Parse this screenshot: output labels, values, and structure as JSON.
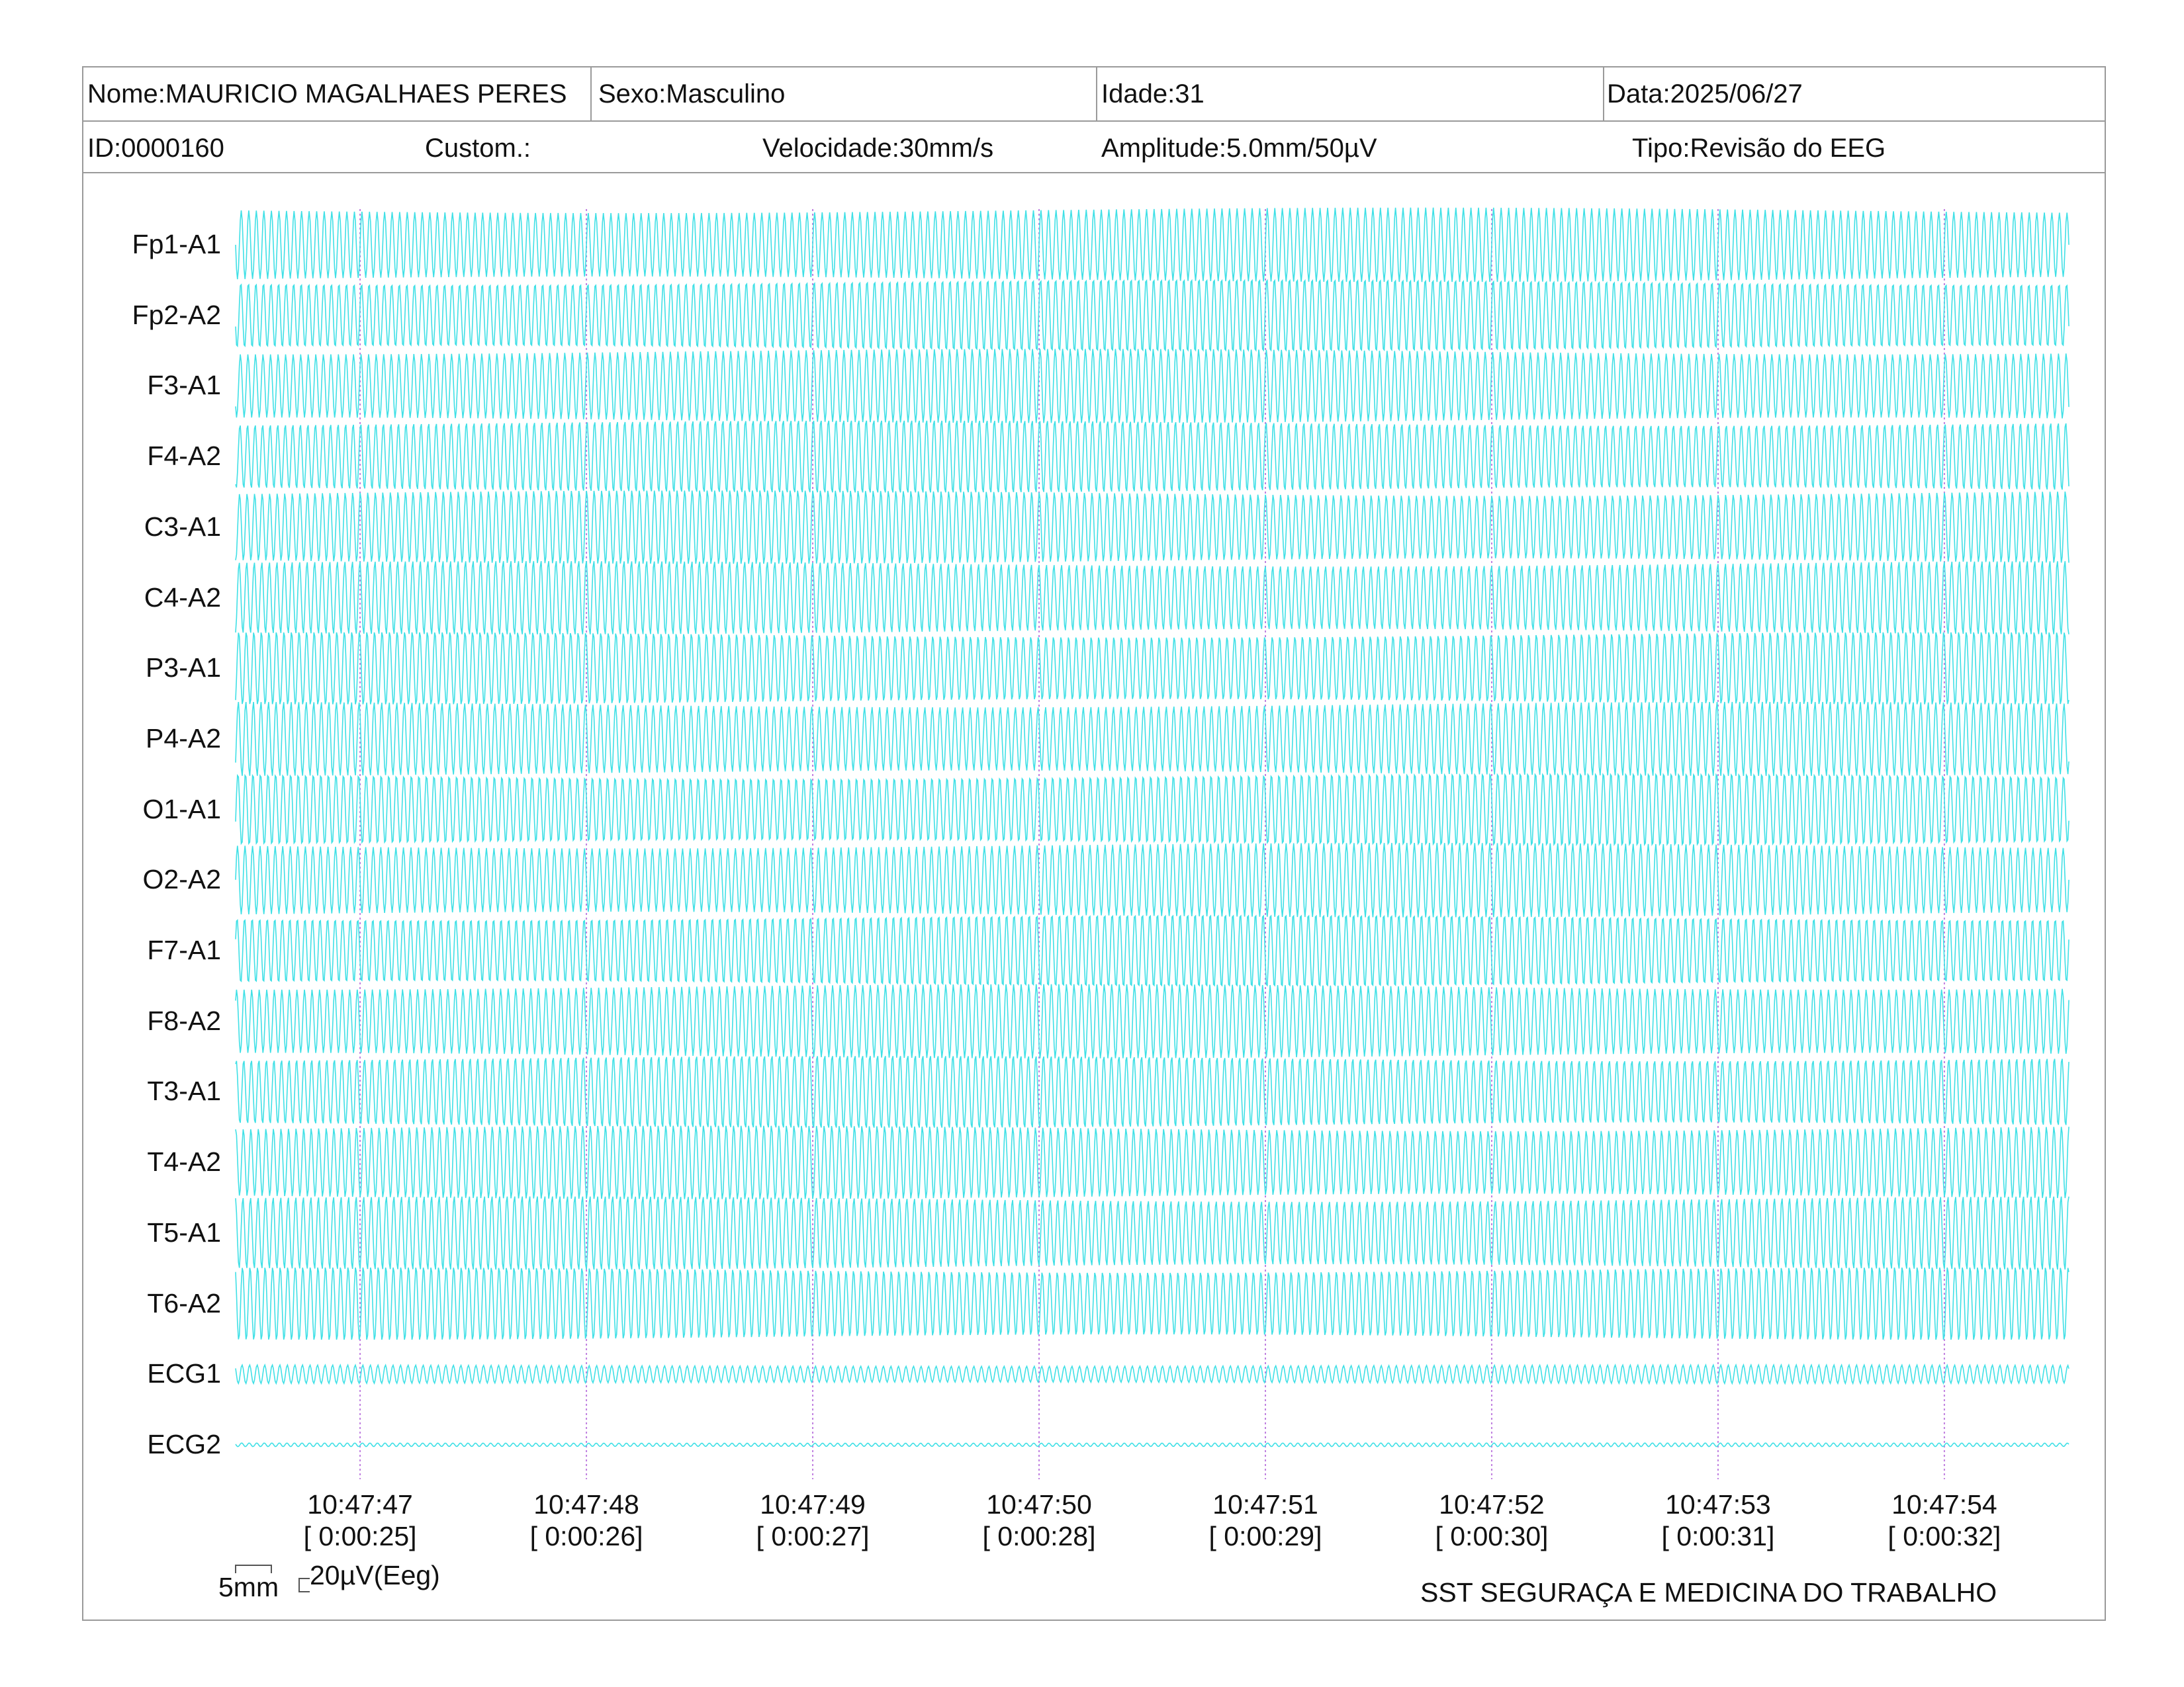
{
  "header": {
    "nome": "Nome:MAURICIO MAGALHAES PERES",
    "sexo": "Sexo:Masculino",
    "idade": "Idade:31",
    "data": "Data:2025/06/27",
    "id": "ID:0000160",
    "custom": "Custom.:",
    "velocidade": "Velocidade:30mm/s",
    "amplitude": "Amplitude:5.0mm/50µV",
    "tipo": "Tipo:Revisão do EEG"
  },
  "scale": {
    "mm": "5mm",
    "uv": "20µV(Eeg)"
  },
  "footer": {
    "company": "SST SEGURAÇA E MEDICINA DO TRABALHO"
  },
  "colors": {
    "trace": "#40e0e6",
    "time_marker": "#c080e0",
    "border": "#9a9a9a"
  },
  "chart_data": {
    "type": "line",
    "title": "",
    "channels": [
      "Fp1-A1",
      "Fp2-A2",
      "F3-A1",
      "F4-A2",
      "C3-A1",
      "C4-A2",
      "P3-A1",
      "P4-A2",
      "O1-A1",
      "O2-A2",
      "F7-A1",
      "F8-A2",
      "T3-A1",
      "T4-A2",
      "T5-A1",
      "T6-A2",
      "ECG1",
      "ECG2"
    ],
    "time_markers": [
      {
        "clock": "10:47:47",
        "elapsed": "[ 0:00:25]"
      },
      {
        "clock": "10:47:48",
        "elapsed": "[ 0:00:26]"
      },
      {
        "clock": "10:47:49",
        "elapsed": "[ 0:00:27]"
      },
      {
        "clock": "10:47:50",
        "elapsed": "[ 0:00:28]"
      },
      {
        "clock": "10:47:51",
        "elapsed": "[ 0:00:29]"
      },
      {
        "clock": "10:47:52",
        "elapsed": "[ 0:00:30]"
      },
      {
        "clock": "10:47:53",
        "elapsed": "[ 0:00:31]"
      },
      {
        "clock": "10:47:54",
        "elapsed": "[ 0:00:32]"
      }
    ],
    "signal": {
      "eeg_cycles_per_second": 30,
      "ecg1_cycles_per_second": 30,
      "ecg2_cycles_per_second": 30,
      "eeg_amplitude_relative": 1.0,
      "ecg1_amplitude_relative": 0.25,
      "ecg2_amplitude_relative": 0.05
    },
    "x_range_seconds": [
      24.45,
      32.55
    ]
  }
}
